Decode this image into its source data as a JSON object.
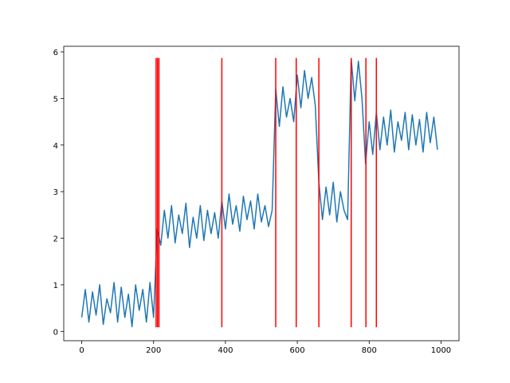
{
  "chart_data": {
    "type": "line",
    "x": [
      0,
      10,
      20,
      30,
      40,
      50,
      60,
      70,
      80,
      90,
      100,
      110,
      120,
      130,
      140,
      150,
      160,
      170,
      180,
      190,
      200,
      210,
      220,
      230,
      240,
      250,
      260,
      270,
      280,
      290,
      300,
      310,
      320,
      330,
      340,
      350,
      360,
      370,
      380,
      390,
      400,
      410,
      420,
      430,
      440,
      450,
      460,
      470,
      480,
      490,
      500,
      510,
      520,
      530,
      540,
      550,
      560,
      570,
      580,
      590,
      600,
      610,
      620,
      630,
      640,
      650,
      660,
      670,
      680,
      690,
      700,
      710,
      720,
      730,
      740,
      750,
      760,
      770,
      780,
      790,
      800,
      810,
      820,
      830,
      840,
      850,
      860,
      870,
      880,
      890,
      900,
      910,
      920,
      930,
      940,
      950,
      960,
      970,
      980,
      990
    ],
    "series": [
      {
        "color": "#1f77b4",
        "values": [
          0.3,
          0.9,
          0.2,
          0.85,
          0.35,
          1.0,
          0.15,
          0.7,
          0.4,
          1.05,
          0.2,
          0.95,
          0.3,
          0.8,
          0.1,
          1.0,
          0.45,
          0.9,
          0.2,
          1.05,
          0.3,
          2.2,
          1.85,
          2.6,
          2.0,
          2.7,
          1.9,
          2.5,
          2.1,
          2.75,
          1.8,
          2.45,
          2.0,
          2.7,
          1.95,
          2.6,
          2.1,
          2.55,
          2.0,
          2.8,
          2.2,
          2.95,
          2.3,
          2.7,
          2.15,
          2.9,
          2.4,
          2.8,
          2.2,
          2.95,
          2.35,
          2.7,
          2.25,
          2.6,
          5.2,
          4.4,
          5.25,
          4.6,
          5.0,
          4.5,
          5.5,
          4.8,
          5.6,
          5.0,
          5.45,
          4.85,
          3.2,
          2.4,
          3.1,
          2.5,
          3.2,
          2.35,
          3.0,
          2.6,
          2.4,
          5.85,
          4.95,
          5.8,
          5.0,
          3.6,
          4.5,
          3.8,
          4.7,
          3.9,
          4.6,
          4.0,
          4.75,
          3.85,
          4.5,
          4.1,
          4.7,
          3.9,
          4.65,
          4.0,
          4.55,
          3.85,
          4.7,
          4.05,
          4.6,
          3.9
        ]
      }
    ],
    "vlines": {
      "x": [
        207,
        211,
        215,
        390,
        540,
        597,
        660,
        750,
        791,
        820
      ],
      "ymin": 0.09,
      "ymax": 5.87,
      "color": "#ff0000"
    },
    "xlim": [
      -50,
      1050
    ],
    "ylim": [
      -0.2,
      6.12
    ],
    "xticks": [
      0,
      200,
      400,
      600,
      800,
      1000
    ],
    "yticks": [
      0,
      1,
      2,
      3,
      4,
      5,
      6
    ],
    "grid": false
  }
}
